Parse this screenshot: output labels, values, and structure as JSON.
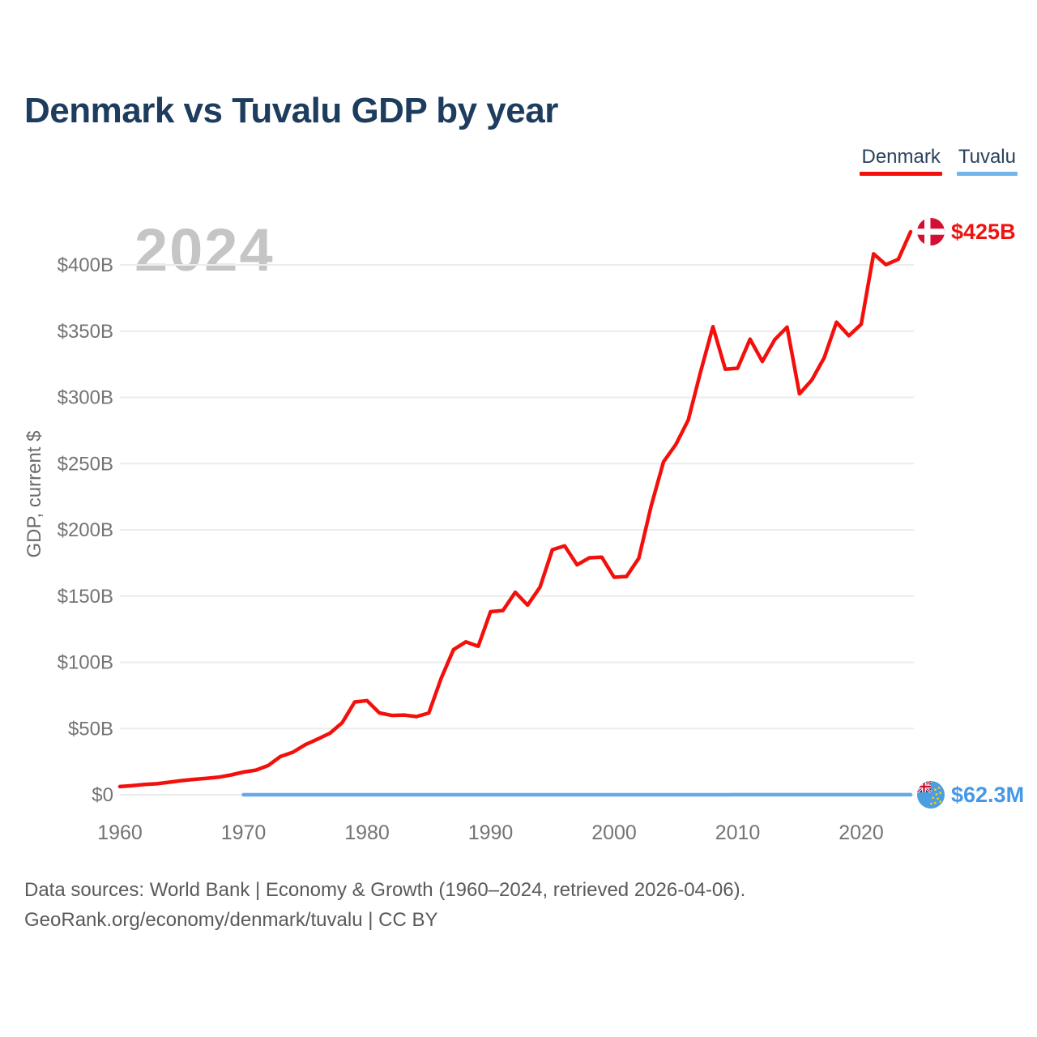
{
  "page": {
    "title": "Denmark vs Tuvalu GDP by year",
    "year_badge": "2024"
  },
  "legend": [
    {
      "label": "Denmark",
      "color": "#f3100c"
    },
    {
      "label": "Tuvalu",
      "color": "#70b4ea"
    }
  ],
  "y_axis": {
    "title": "GDP, current $",
    "tick_labels": [
      "$0",
      "$50B",
      "$100B",
      "$150B",
      "$200B",
      "$250B",
      "$300B",
      "$350B",
      "$400B"
    ],
    "tick_values": [
      0,
      50,
      100,
      150,
      200,
      250,
      300,
      350,
      400
    ]
  },
  "x_axis": {
    "tick_labels": [
      "1960",
      "1970",
      "1980",
      "1990",
      "2000",
      "2010",
      "2020"
    ]
  },
  "end_labels": {
    "denmark": "$425B",
    "tuvalu": "$62.3M"
  },
  "footer": {
    "line1": "Data sources: World Bank | Economy & Growth (1960–2024, retrieved 2026-04-06).",
    "line2": "GeoRank.org/economy/denmark/tuvalu | CC BY"
  },
  "colors": {
    "denmark_line": "#f3100c",
    "denmark_label": "#ef1310",
    "tuvalu_line": "#68a9e8",
    "tuvalu_label": "#4598e8",
    "title_text": "#1d3c5e",
    "legend_text": "#29425d",
    "tick_text": "#747474",
    "gridline": "#ececec",
    "watermark": "#c5c5c5",
    "footer_text": "#5a5a5a"
  },
  "chart_data": {
    "type": "line",
    "title": "Denmark vs Tuvalu GDP by year",
    "xlabel": "",
    "ylabel": "GDP, current $",
    "xlim": [
      1960,
      2024
    ],
    "ylim": [
      0,
      425
    ],
    "grid": true,
    "legend_position": "top-right",
    "watermark_year_shown": "2024",
    "series": [
      {
        "name": "Denmark",
        "color": "#f3100c",
        "unit": "USD billions",
        "start_year": 1960,
        "end_year": 2024,
        "end_value_label": "$425B",
        "values": [
          6.2,
          6.9,
          7.8,
          8.3,
          9.5,
          10.7,
          11.6,
          12.4,
          13.3,
          15.0,
          17.1,
          18.6,
          22.1,
          28.9,
          32.1,
          37.8,
          42.0,
          46.5,
          54.5,
          70.0,
          71.1,
          61.8,
          59.9,
          60.2,
          59.0,
          61.7,
          87.8,
          109.6,
          115.4,
          112.1,
          138.2,
          139.1,
          152.9,
          143.2,
          156.7,
          185.0,
          187.9,
          173.6,
          178.9,
          179.4,
          164.2,
          164.8,
          178.6,
          218.1,
          251.4,
          264.5,
          282.9,
          319.4,
          353.4,
          321.2,
          322.0,
          344.0,
          327.1,
          343.6,
          353.0,
          302.7,
          313.1,
          329.9,
          356.8,
          346.5,
          355.2,
          408.4,
          400.2,
          404.2,
          425.0
        ]
      },
      {
        "name": "Tuvalu",
        "color": "#68a9e8",
        "unit": "USD millions",
        "start_year": 1970,
        "end_year": 2024,
        "end_value_label": "$62.3M",
        "values": [
          1.1,
          1.2,
          1.3,
          1.6,
          1.9,
          2.2,
          2.3,
          2.6,
          3.0,
          3.5,
          4.0,
          4.3,
          4.4,
          4.6,
          4.7,
          4.6,
          5.3,
          6.4,
          7.4,
          8.0,
          8.8,
          9.3,
          9.9,
          10.2,
          10.9,
          11.4,
          11.8,
          11.9,
          12.2,
          12.4,
          12.1,
          12.4,
          14.4,
          18.0,
          21.0,
          21.5,
          23.3,
          26.7,
          30.2,
          27.2,
          31.8,
          39.0,
          38.6,
          38.3,
          35.6,
          33.1,
          34.8,
          39.9,
          42.6,
          47.5,
          48.9,
          53.9,
          56.3,
          59.6,
          62.3
        ]
      }
    ]
  }
}
